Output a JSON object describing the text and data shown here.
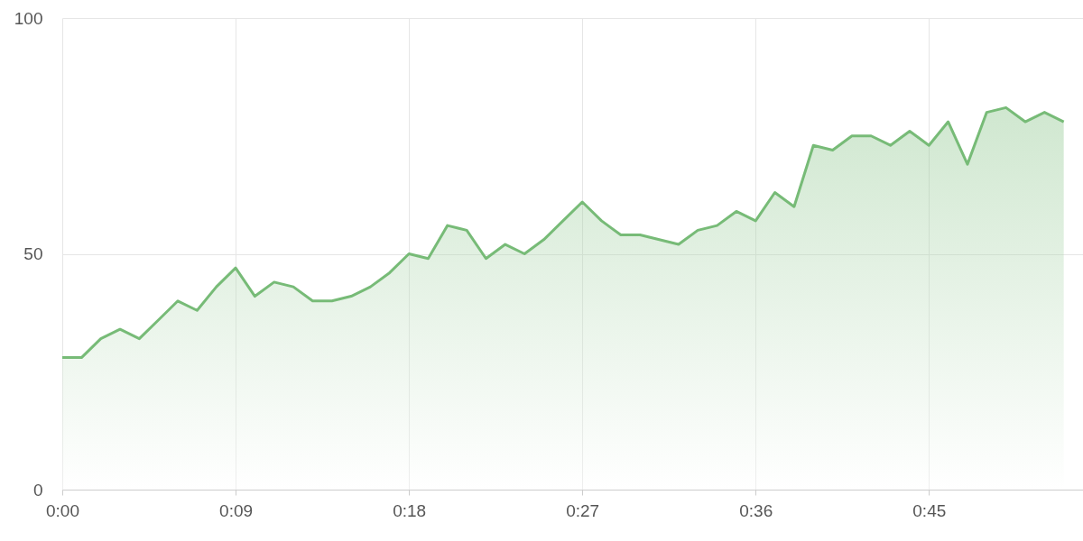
{
  "chart_data": {
    "type": "area",
    "x": [
      0,
      1,
      2,
      3,
      4,
      5,
      6,
      7,
      8,
      9,
      10,
      11,
      12,
      13,
      14,
      15,
      16,
      17,
      18,
      19,
      20,
      21,
      22,
      23,
      24,
      25,
      26,
      27,
      28,
      29,
      30,
      31,
      32,
      33,
      34,
      35,
      36,
      37,
      38,
      39,
      40,
      41,
      42,
      43,
      44,
      45,
      46,
      47,
      48,
      49,
      50,
      51,
      52
    ],
    "series": [
      {
        "color": "#77bb77",
        "values": [
          28,
          28,
          32,
          34,
          32,
          36,
          40,
          38,
          43,
          47,
          41,
          44,
          43,
          40,
          40,
          41,
          43,
          46,
          50,
          49,
          56,
          55,
          49,
          52,
          50,
          53,
          57,
          61,
          57,
          54,
          54,
          53,
          52,
          55,
          56,
          59,
          57,
          63,
          60,
          73,
          72,
          75,
          75,
          73,
          76,
          73,
          78,
          69,
          80,
          81,
          78,
          80,
          78
        ]
      }
    ],
    "xlim": [
      0,
      53
    ],
    "xticks": [
      {
        "value": 0,
        "label": "0:00"
      },
      {
        "value": 9,
        "label": "0:09"
      },
      {
        "value": 18,
        "label": "0:18"
      },
      {
        "value": 27,
        "label": "0:27"
      },
      {
        "value": 36,
        "label": "0:36"
      },
      {
        "value": 45,
        "label": "0:45"
      }
    ],
    "ylim": [
      0,
      100
    ],
    "yticks": [
      0,
      50,
      100
    ],
    "grid": true,
    "marker": "none",
    "line_style": "solid"
  }
}
